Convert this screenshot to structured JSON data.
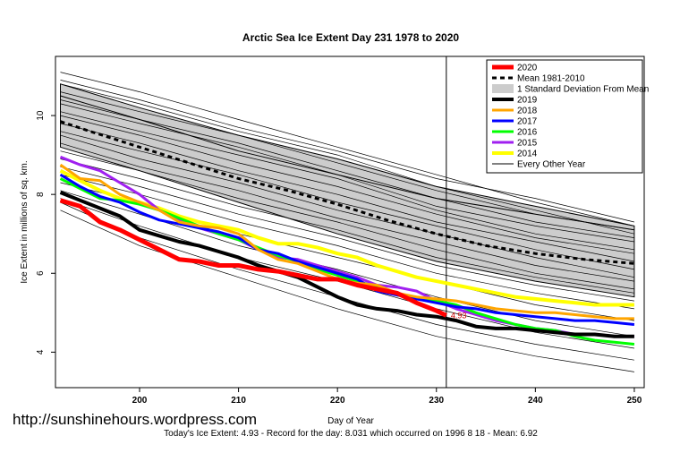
{
  "watermark": "http://sunshinehours.wordpress.com",
  "footer": "Today's Ice Extent: 4.93  - Record for the day: 8.031 which occurred on 1996 8 18  - Mean: 6.92",
  "chart_data": {
    "type": "line",
    "title": "Arctic Sea Ice Extent Day 231 1978 to 2020",
    "xlabel": "Day of Year",
    "ylabel": "Ice Extent in millions of sq. km.",
    "xlim": [
      191.5,
      251
    ],
    "ylim": [
      3.1,
      11.5
    ],
    "xticks": [
      200,
      210,
      220,
      230,
      240,
      250
    ],
    "yticks": [
      4,
      6,
      8,
      10
    ],
    "grid": false,
    "legend_position": "top-right",
    "marker_day": 231,
    "annotation": {
      "day": 231,
      "value": 4.93,
      "text": "4.93",
      "color": "#cc0000"
    },
    "std_band": {
      "label": "1 Standard Deviation From Mean",
      "color": "#cccccc",
      "x": [
        192,
        200,
        210,
        220,
        230,
        240,
        250
      ],
      "upper": [
        10.8,
        10.2,
        9.5,
        8.9,
        8.2,
        7.7,
        7.2
      ],
      "lower": [
        9.2,
        8.6,
        7.8,
        7.0,
        6.3,
        5.8,
        5.4
      ]
    },
    "series": [
      {
        "name": "2020",
        "color": "#ff0000",
        "width": 5,
        "dash": "",
        "x": [
          192,
          194,
          196,
          198,
          200,
          202,
          204,
          206,
          208,
          210,
          212,
          214,
          216,
          218,
          220,
          222,
          224,
          226,
          228,
          230,
          231
        ],
        "values": [
          7.85,
          7.7,
          7.3,
          7.1,
          6.85,
          6.6,
          6.35,
          6.3,
          6.2,
          6.2,
          6.1,
          6.05,
          5.95,
          5.85,
          5.85,
          5.7,
          5.6,
          5.5,
          5.25,
          5.05,
          4.93
        ]
      },
      {
        "name": "Mean 1981-2010",
        "color": "#000000",
        "width": 3,
        "dash": "5,4",
        "x": [
          192,
          195,
          200,
          205,
          210,
          215,
          220,
          225,
          230,
          235,
          240,
          245,
          250
        ],
        "values": [
          9.85,
          9.6,
          9.2,
          8.8,
          8.4,
          8.1,
          7.75,
          7.35,
          7.0,
          6.7,
          6.5,
          6.35,
          6.25
        ]
      },
      {
        "name": "2019",
        "color": "#000000",
        "width": 4,
        "dash": "",
        "x": [
          192,
          194,
          196,
          198,
          200,
          202,
          204,
          206,
          208,
          210,
          212,
          214,
          216,
          218,
          220,
          222,
          224,
          226,
          228,
          230,
          232,
          234,
          236,
          238,
          240,
          242,
          244,
          246,
          248,
          250
        ],
        "values": [
          8.05,
          7.85,
          7.65,
          7.45,
          7.1,
          6.95,
          6.8,
          6.7,
          6.55,
          6.4,
          6.2,
          6.05,
          5.9,
          5.65,
          5.4,
          5.2,
          5.1,
          5.05,
          4.95,
          4.9,
          4.8,
          4.65,
          4.6,
          4.6,
          4.55,
          4.5,
          4.45,
          4.45,
          4.4,
          4.4
        ]
      },
      {
        "name": "2018",
        "color": "#ffa500",
        "width": 3,
        "dash": "",
        "x": [
          192,
          194,
          196,
          198,
          200,
          202,
          204,
          206,
          208,
          210,
          212,
          214,
          216,
          218,
          220,
          222,
          224,
          226,
          228,
          230,
          232,
          234,
          236,
          238,
          240,
          242,
          244,
          246,
          248,
          250
        ],
        "values": [
          8.75,
          8.4,
          8.35,
          8.0,
          7.8,
          7.6,
          7.3,
          7.2,
          7.15,
          7.0,
          6.6,
          6.35,
          6.25,
          6.05,
          5.85,
          5.75,
          5.7,
          5.5,
          5.4,
          5.35,
          5.3,
          5.2,
          5.1,
          5.05,
          5.0,
          5.0,
          4.95,
          4.9,
          4.85,
          4.85
        ]
      },
      {
        "name": "2017",
        "color": "#0000ff",
        "width": 3,
        "dash": "",
        "x": [
          192,
          194,
          196,
          198,
          200,
          202,
          204,
          206,
          208,
          210,
          212,
          214,
          216,
          218,
          220,
          222,
          224,
          226,
          228,
          230,
          232,
          234,
          236,
          238,
          240,
          242,
          244,
          246,
          248,
          250
        ],
        "values": [
          8.5,
          8.2,
          7.95,
          7.8,
          7.55,
          7.35,
          7.25,
          7.15,
          7.05,
          6.9,
          6.6,
          6.5,
          6.3,
          6.15,
          6.0,
          5.85,
          5.55,
          5.45,
          5.35,
          5.25,
          5.15,
          5.1,
          5.0,
          4.95,
          4.9,
          4.85,
          4.8,
          4.8,
          4.75,
          4.7
        ]
      },
      {
        "name": "2016",
        "color": "#00ff00",
        "width": 3,
        "dash": "",
        "x": [
          192,
          194,
          196,
          198,
          200,
          202,
          204,
          206,
          208,
          210,
          212,
          214,
          216,
          218,
          220,
          222,
          224,
          226,
          228,
          230,
          232,
          234,
          236,
          238,
          240,
          242,
          244,
          246,
          248,
          250
        ],
        "values": [
          8.4,
          8.15,
          7.9,
          7.85,
          7.75,
          7.6,
          7.4,
          7.2,
          7.0,
          6.85,
          6.65,
          6.45,
          6.3,
          6.1,
          5.95,
          5.8,
          5.65,
          5.45,
          5.35,
          5.3,
          5.2,
          5.0,
          4.85,
          4.7,
          4.6,
          4.55,
          4.4,
          4.3,
          4.25,
          4.2
        ]
      },
      {
        "name": "2015",
        "color": "#a020f0",
        "width": 3,
        "dash": "",
        "x": [
          192,
          194,
          196,
          198,
          200,
          202,
          204,
          206,
          208,
          210,
          212,
          214,
          216,
          218,
          220,
          222,
          224,
          226,
          228,
          230,
          232,
          234,
          236,
          238,
          240,
          242,
          244,
          246,
          248,
          250
        ],
        "values": [
          8.95,
          8.75,
          8.6,
          8.3,
          8.0,
          7.6,
          7.35,
          7.15,
          7.0,
          6.85,
          6.6,
          6.4,
          6.35,
          6.2,
          6.05,
          5.9,
          5.7,
          5.65,
          5.55,
          5.3,
          5.1,
          4.95,
          4.8,
          4.7,
          4.6,
          4.55,
          4.45,
          4.45,
          4.4,
          4.4
        ]
      },
      {
        "name": "2014",
        "color": "#ffff00",
        "width": 4,
        "dash": "",
        "x": [
          192,
          194,
          196,
          198,
          200,
          202,
          204,
          206,
          208,
          210,
          212,
          214,
          216,
          218,
          220,
          222,
          224,
          226,
          228,
          230,
          232,
          234,
          236,
          238,
          240,
          242,
          244,
          246,
          248,
          250
        ],
        "values": [
          8.6,
          8.35,
          8.1,
          7.9,
          7.8,
          7.65,
          7.45,
          7.3,
          7.2,
          7.1,
          6.9,
          6.75,
          6.75,
          6.65,
          6.5,
          6.4,
          6.2,
          6.05,
          5.9,
          5.8,
          5.7,
          5.6,
          5.5,
          5.4,
          5.35,
          5.3,
          5.25,
          5.2,
          5.2,
          5.2
        ]
      },
      {
        "name": "Every Other Year",
        "color": "#000000",
        "width": 1,
        "dash": "",
        "x": [
          192,
          200,
          210,
          220,
          230,
          240,
          250
        ],
        "values": [
          10.5,
          9.9,
          9.1,
          8.5,
          7.9,
          7.5,
          7.1
        ]
      }
    ],
    "background_years": {
      "color": "#000000",
      "width": 0.7,
      "x": [
        192,
        200,
        210,
        220,
        230,
        240,
        250
      ],
      "lines": [
        [
          11.1,
          10.6,
          9.9,
          9.2,
          8.5,
          7.8,
          7.2
        ],
        [
          10.9,
          10.4,
          9.7,
          9.1,
          8.4,
          7.9,
          7.3
        ],
        [
          10.8,
          10.3,
          9.6,
          9.0,
          8.2,
          7.6,
          7.0
        ],
        [
          10.6,
          10.1,
          9.5,
          8.8,
          8.1,
          7.5,
          7.1
        ],
        [
          10.4,
          9.9,
          9.3,
          8.6,
          7.9,
          7.3,
          6.9
        ],
        [
          10.3,
          9.8,
          9.2,
          8.5,
          7.7,
          7.2,
          6.8
        ],
        [
          10.1,
          9.6,
          9.0,
          8.4,
          7.6,
          7.0,
          6.6
        ],
        [
          10.0,
          9.5,
          8.8,
          8.2,
          7.5,
          6.9,
          6.5
        ],
        [
          9.8,
          9.3,
          8.6,
          8.0,
          7.3,
          6.8,
          6.3
        ],
        [
          9.6,
          9.1,
          8.5,
          7.8,
          7.2,
          6.6,
          6.1
        ],
        [
          9.5,
          8.9,
          8.3,
          7.6,
          7.0,
          6.4,
          5.9
        ],
        [
          9.3,
          8.7,
          8.1,
          7.4,
          6.8,
          6.2,
          5.8
        ],
        [
          9.1,
          8.6,
          7.9,
          7.3,
          6.6,
          6.0,
          5.6
        ],
        [
          8.9,
          8.4,
          7.7,
          7.1,
          6.4,
          5.9,
          5.5
        ],
        [
          8.7,
          8.2,
          7.5,
          6.9,
          6.2,
          5.7,
          5.3
        ],
        [
          8.5,
          8.0,
          7.3,
          6.7,
          6.0,
          5.5,
          5.1
        ],
        [
          8.3,
          7.8,
          7.0,
          6.4,
          5.8,
          5.2,
          4.8
        ],
        [
          8.1,
          7.5,
          6.7,
          6.1,
          5.4,
          4.8,
          4.4
        ],
        [
          7.9,
          7.2,
          6.4,
          5.8,
          5.1,
          4.5,
          4.1
        ],
        [
          7.8,
          6.9,
          6.1,
          5.4,
          4.7,
          4.2,
          3.8
        ],
        [
          7.6,
          6.7,
          5.9,
          5.1,
          4.4,
          3.9,
          3.5
        ]
      ]
    }
  }
}
